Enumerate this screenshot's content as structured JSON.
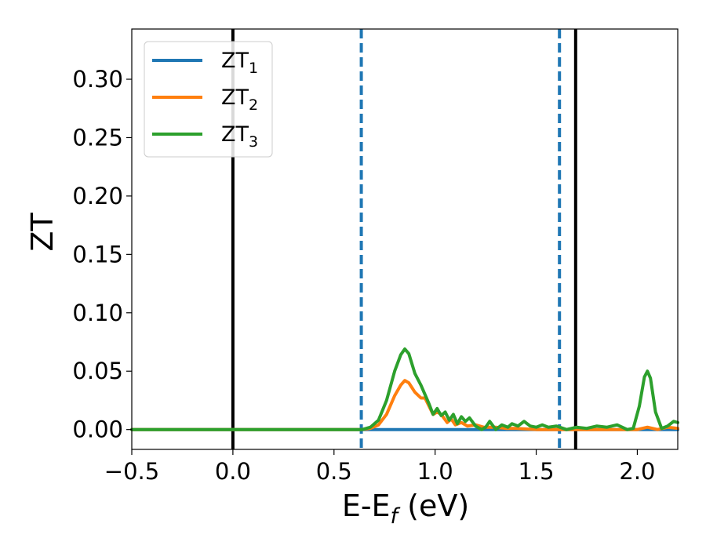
{
  "chart_data": {
    "type": "line",
    "xlabel": "E-E",
    "xlabel_sub": "f",
    "xlabel_units": " (eV)",
    "ylabel": "ZT",
    "xlim": [
      -0.5,
      2.2
    ],
    "ylim": [
      -0.017,
      0.343
    ],
    "xticks": [
      -0.5,
      0.0,
      0.5,
      1.0,
      1.5,
      2.0
    ],
    "xtick_labels": [
      "−0.5",
      "0.0",
      "0.5",
      "1.0",
      "1.5",
      "2.0"
    ],
    "yticks": [
      0.0,
      0.05,
      0.1,
      0.15,
      0.2,
      0.25,
      0.3
    ],
    "ytick_labels": [
      "0.00",
      "0.05",
      "0.10",
      "0.15",
      "0.20",
      "0.25",
      "0.30"
    ],
    "grid": false,
    "legend_position": "top-left",
    "vlines": [
      {
        "x": 0.0,
        "style": "solid",
        "color": "#000000"
      },
      {
        "x": 0.635,
        "style": "dashed",
        "color": "#1f77b4"
      },
      {
        "x": 1.615,
        "style": "dashed",
        "color": "#1f77b4"
      },
      {
        "x": 1.695,
        "style": "solid",
        "color": "#000000"
      }
    ],
    "series": [
      {
        "name": "ZT",
        "name_sub": "1",
        "color": "#1f77b4",
        "points": [
          [
            -0.5,
            0.0
          ],
          [
            2.2,
            0.0
          ]
        ]
      },
      {
        "name": "ZT",
        "name_sub": "2",
        "color": "#ff7f0e",
        "points": [
          [
            -0.5,
            0.0
          ],
          [
            0.6,
            0.0
          ],
          [
            0.64,
            0.0
          ],
          [
            0.68,
            0.001
          ],
          [
            0.72,
            0.004
          ],
          [
            0.76,
            0.013
          ],
          [
            0.8,
            0.029
          ],
          [
            0.83,
            0.038
          ],
          [
            0.85,
            0.042
          ],
          [
            0.87,
            0.04
          ],
          [
            0.9,
            0.032
          ],
          [
            0.93,
            0.027
          ],
          [
            0.95,
            0.027
          ],
          [
            0.97,
            0.02
          ],
          [
            0.99,
            0.013
          ],
          [
            1.01,
            0.015
          ],
          [
            1.03,
            0.013
          ],
          [
            1.06,
            0.006
          ],
          [
            1.08,
            0.009
          ],
          [
            1.1,
            0.004
          ],
          [
            1.13,
            0.006
          ],
          [
            1.16,
            0.003
          ],
          [
            1.2,
            0.004
          ],
          [
            1.24,
            0.002
          ],
          [
            1.3,
            0.002
          ],
          [
            1.35,
            0.001
          ],
          [
            1.4,
            0.001
          ],
          [
            1.5,
            0.0
          ],
          [
            1.6,
            0.0
          ],
          [
            1.8,
            0.0
          ],
          [
            1.95,
            0.0
          ],
          [
            2.0,
            0.0
          ],
          [
            2.05,
            0.002
          ],
          [
            2.1,
            0.0
          ],
          [
            2.15,
            0.002
          ],
          [
            2.2,
            0.001
          ]
        ]
      },
      {
        "name": "ZT",
        "name_sub": "3",
        "color": "#2ca02c",
        "points": [
          [
            -0.5,
            0.0
          ],
          [
            0.6,
            0.0
          ],
          [
            0.64,
            0.0
          ],
          [
            0.68,
            0.002
          ],
          [
            0.72,
            0.008
          ],
          [
            0.76,
            0.025
          ],
          [
            0.8,
            0.05
          ],
          [
            0.83,
            0.064
          ],
          [
            0.85,
            0.069
          ],
          [
            0.87,
            0.065
          ],
          [
            0.9,
            0.048
          ],
          [
            0.93,
            0.038
          ],
          [
            0.95,
            0.03
          ],
          [
            0.97,
            0.022
          ],
          [
            0.99,
            0.013
          ],
          [
            1.01,
            0.018
          ],
          [
            1.03,
            0.012
          ],
          [
            1.05,
            0.015
          ],
          [
            1.07,
            0.008
          ],
          [
            1.09,
            0.013
          ],
          [
            1.11,
            0.005
          ],
          [
            1.13,
            0.011
          ],
          [
            1.15,
            0.007
          ],
          [
            1.17,
            0.01
          ],
          [
            1.2,
            0.003
          ],
          [
            1.23,
            0.0
          ],
          [
            1.25,
            0.002
          ],
          [
            1.27,
            0.007
          ],
          [
            1.3,
            0.0
          ],
          [
            1.33,
            0.004
          ],
          [
            1.36,
            0.002
          ],
          [
            1.38,
            0.005
          ],
          [
            1.41,
            0.003
          ],
          [
            1.44,
            0.007
          ],
          [
            1.47,
            0.003
          ],
          [
            1.5,
            0.002
          ],
          [
            1.53,
            0.004
          ],
          [
            1.56,
            0.002
          ],
          [
            1.6,
            0.003
          ],
          [
            1.65,
            0.0
          ],
          [
            1.7,
            0.002
          ],
          [
            1.75,
            0.001
          ],
          [
            1.8,
            0.003
          ],
          [
            1.85,
            0.002
          ],
          [
            1.9,
            0.004
          ],
          [
            1.95,
            0.0
          ],
          [
            1.98,
            0.001
          ],
          [
            2.01,
            0.02
          ],
          [
            2.035,
            0.045
          ],
          [
            2.05,
            0.05
          ],
          [
            2.065,
            0.044
          ],
          [
            2.09,
            0.015
          ],
          [
            2.12,
            0.001
          ],
          [
            2.15,
            0.003
          ],
          [
            2.18,
            0.007
          ],
          [
            2.2,
            0.006
          ]
        ]
      }
    ]
  }
}
